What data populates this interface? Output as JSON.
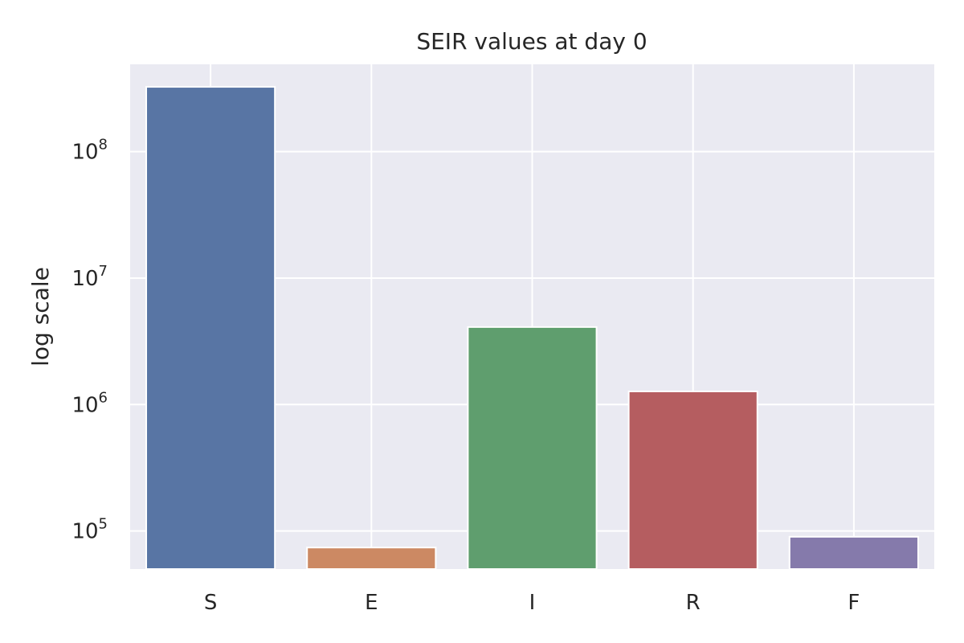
{
  "chart_data": {
    "type": "bar",
    "title": "SEIR values at day 0",
    "xlabel": "",
    "ylabel": "log scale",
    "yscale": "log",
    "ylim": [
      50000,
      490000000
    ],
    "categories": [
      "S",
      "E",
      "I",
      "R",
      "F"
    ],
    "values": [
      325000000,
      74000,
      4100000,
      1270000,
      90000
    ],
    "colors": [
      "#5875a4",
      "#cc8963",
      "#5f9e6e",
      "#b55d60",
      "#857aab"
    ],
    "yticks": [
      {
        "base": "10",
        "exp": "5",
        "value": 100000
      },
      {
        "base": "10",
        "exp": "6",
        "value": 1000000
      },
      {
        "base": "10",
        "exp": "7",
        "value": 10000000
      },
      {
        "base": "10",
        "exp": "8",
        "value": 100000000
      }
    ],
    "grid": true,
    "background": "#eaeaf2"
  }
}
